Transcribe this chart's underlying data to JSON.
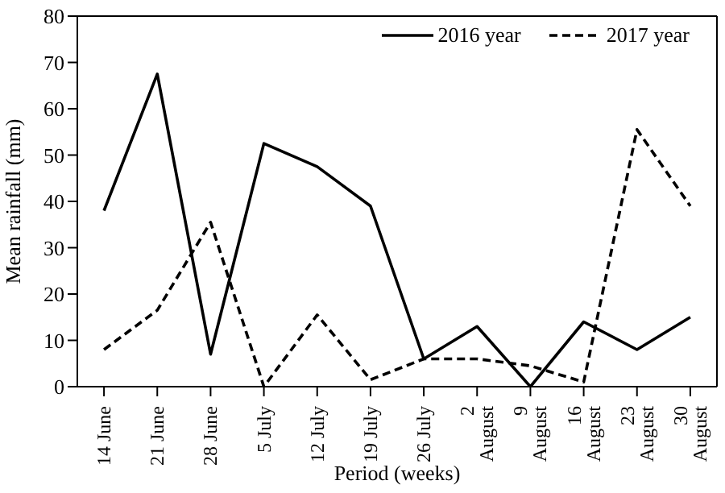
{
  "chart_data": {
    "type": "line",
    "xlabel": "Period (weeks)",
    "ylabel": "Mean rainfall (mm)",
    "categories": [
      "14 June",
      "21 June",
      "28 June",
      "5 July",
      "12 July",
      "19 July",
      "26 July",
      "2 August",
      "9 August",
      "16 August",
      "23 August",
      "30 August"
    ],
    "series": [
      {
        "name": "2016 year",
        "color": "#000000",
        "line_style": "solid",
        "values": [
          38,
          67.5,
          7,
          52.5,
          47.5,
          39,
          6,
          13,
          0,
          14,
          8,
          15
        ]
      },
      {
        "name": "2017 year",
        "color": "#000000",
        "line_style": "dashed",
        "values": [
          8,
          16.5,
          35.5,
          0,
          15.5,
          1.5,
          6,
          6,
          4.5,
          1,
          55.5,
          39
        ]
      }
    ],
    "ylim": [
      0,
      80
    ],
    "yticks": [
      0,
      10,
      20,
      30,
      40,
      50,
      60,
      70,
      80
    ],
    "legend": "top right",
    "marker": "none"
  }
}
